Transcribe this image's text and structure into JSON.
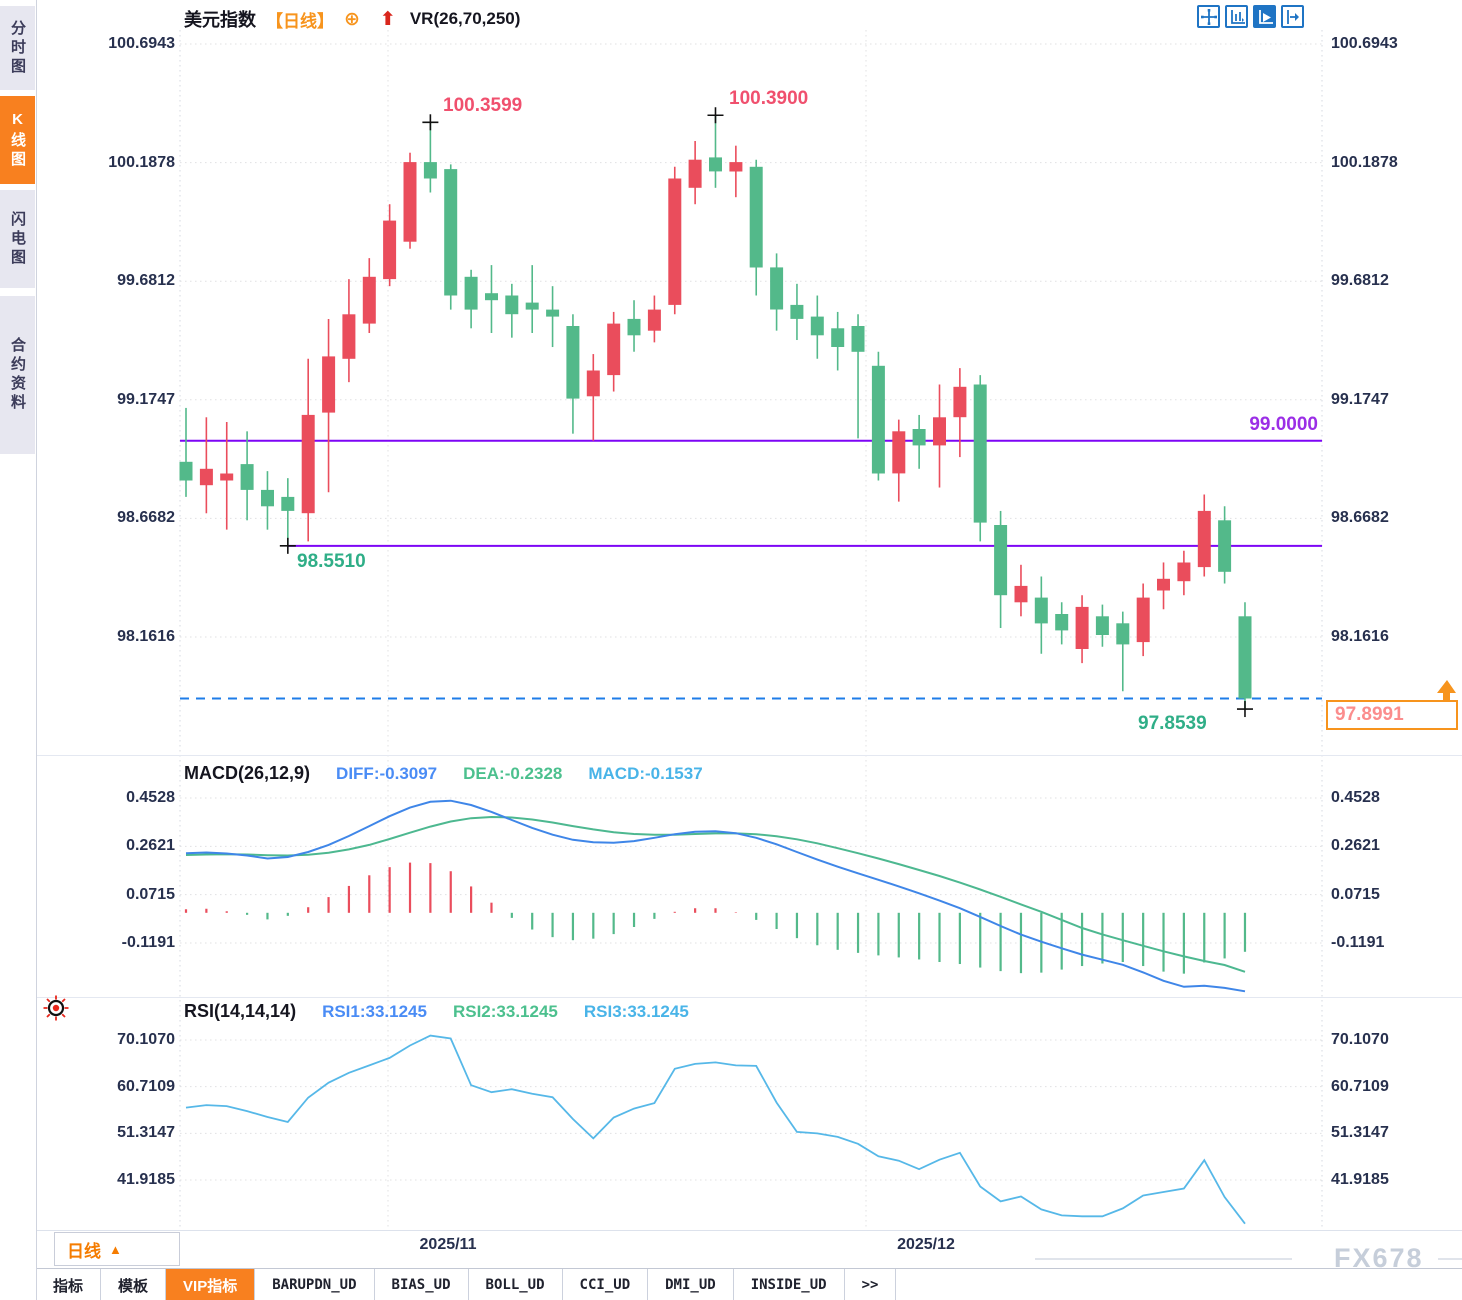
{
  "sidebar": {
    "items": [
      {
        "id": "timeshare",
        "label": "分时图",
        "active": false
      },
      {
        "id": "kline",
        "label": "K线图",
        "active": true
      },
      {
        "id": "lightning",
        "label": "闪电图",
        "active": false
      },
      {
        "id": "contract-info",
        "label": "合约资料",
        "active": false
      }
    ]
  },
  "header": {
    "symbol": "美元指数",
    "period_tag": "【日线】",
    "plus_icon": "⊕",
    "up_arrow": "⬆",
    "indicator": "VR(26,70,250)"
  },
  "toolbar_icons": [
    "crosshair-move",
    "axis-scale",
    "playback",
    "jump-to-latest"
  ],
  "price_axis": {
    "labels": [
      "100.6943",
      "100.1878",
      "99.6812",
      "99.1747",
      "98.6682",
      "98.1616"
    ]
  },
  "annotations": {
    "high1": "100.3599",
    "high2": "100.3900",
    "low1": "98.5510",
    "low2": "97.8539",
    "hline_label": "99.0000",
    "last_price": "97.8991"
  },
  "macd_panel": {
    "title": "MACD(26,12,9)",
    "diff_label": "DIFF:-0.3097",
    "dea_label": "DEA:-0.2328",
    "macd_label": "MACD:-0.1537",
    "axis_labels": [
      "0.4528",
      "0.2621",
      "0.0715",
      "-0.1191"
    ]
  },
  "rsi_panel": {
    "title": "RSI(14,14,14)",
    "rsi1_label": "RSI1:33.1245",
    "rsi2_label": "RSI2:33.1245",
    "rsi3_label": "RSI3:33.1245",
    "axis_labels": [
      "70.1070",
      "60.7109",
      "51.3147",
      "41.9185"
    ]
  },
  "xaxis": {
    "labels": [
      "2025/11",
      "2025/12"
    ]
  },
  "period_selector": {
    "label": "日线",
    "arrow": "▲"
  },
  "bottom_tabs": [
    {
      "id": "indicators",
      "label": "指标",
      "active": false,
      "mono": false
    },
    {
      "id": "templates",
      "label": "模板",
      "active": false,
      "mono": false
    },
    {
      "id": "vip-indicators",
      "label": "VIP指标",
      "active": true,
      "mono": false
    },
    {
      "id": "barupdn",
      "label": "BARUPDN_UD",
      "active": false,
      "mono": true
    },
    {
      "id": "bias",
      "label": "BIAS_UD",
      "active": false,
      "mono": true
    },
    {
      "id": "boll",
      "label": "BOLL_UD",
      "active": false,
      "mono": true
    },
    {
      "id": "cci",
      "label": "CCI_UD",
      "active": false,
      "mono": true
    },
    {
      "id": "dmi",
      "label": "DMI_UD",
      "active": false,
      "mono": true
    },
    {
      "id": "inside",
      "label": "INSIDE_UD",
      "active": false,
      "mono": true
    },
    {
      "id": "more",
      "label": ">>",
      "active": false,
      "mono": true
    }
  ],
  "watermark": "FX678",
  "colors": {
    "up": "#ea4d5c",
    "down": "#53b98a",
    "purple_line": "#7d05f5",
    "dashed_blue": "#1e7ce8",
    "accent_orange": "#f8801f",
    "grid": "#e0e0e2",
    "axis_text": "#27304e",
    "diff_line": "#3f86e8",
    "dea_line": "#4db890",
    "rsi_line": "#56b8e8"
  },
  "chart_data": {
    "type": "candlestick",
    "title": "美元指数 日线 (US Dollar Index, Daily)",
    "ylim": [
      97.75,
      100.75
    ],
    "y_ticks": [
      100.6943,
      100.1878,
      99.6812,
      99.1747,
      98.6682,
      98.1616
    ],
    "x_ticks": [
      "2025/11",
      "2025/12"
    ],
    "up_color": "#ea4d5c",
    "down_color": "#53b98a",
    "grid": true,
    "candles_ohlc": [
      [
        98.91,
        99.14,
        98.76,
        98.83
      ],
      [
        98.81,
        99.1,
        98.69,
        98.88
      ],
      [
        98.83,
        99.08,
        98.62,
        98.86
      ],
      [
        98.9,
        99.04,
        98.66,
        98.79
      ],
      [
        98.79,
        98.87,
        98.62,
        98.72
      ],
      [
        98.76,
        98.84,
        98.551,
        98.7
      ],
      [
        98.69,
        99.35,
        98.57,
        99.11
      ],
      [
        99.12,
        99.52,
        98.78,
        99.36
      ],
      [
        99.35,
        99.69,
        99.25,
        99.54
      ],
      [
        99.5,
        99.78,
        99.46,
        99.7
      ],
      [
        99.69,
        100.01,
        99.66,
        99.94
      ],
      [
        99.85,
        100.23,
        99.82,
        100.19
      ],
      [
        100.19,
        100.3599,
        100.06,
        100.12
      ],
      [
        100.16,
        100.18,
        99.56,
        99.62
      ],
      [
        99.7,
        99.73,
        99.48,
        99.56
      ],
      [
        99.63,
        99.75,
        99.46,
        99.6
      ],
      [
        99.62,
        99.67,
        99.44,
        99.54
      ],
      [
        99.59,
        99.75,
        99.46,
        99.56
      ],
      [
        99.56,
        99.66,
        99.4,
        99.53
      ],
      [
        99.49,
        99.54,
        99.03,
        99.18
      ],
      [
        99.19,
        99.37,
        99.0,
        99.3
      ],
      [
        99.28,
        99.55,
        99.21,
        99.5
      ],
      [
        99.52,
        99.6,
        99.38,
        99.45
      ],
      [
        99.47,
        99.62,
        99.42,
        99.56
      ],
      [
        99.58,
        100.17,
        99.54,
        100.12
      ],
      [
        100.08,
        100.28,
        100.01,
        100.2
      ],
      [
        100.21,
        100.39,
        100.08,
        100.15
      ],
      [
        100.15,
        100.26,
        100.04,
        100.19
      ],
      [
        100.17,
        100.2,
        99.62,
        99.74
      ],
      [
        99.74,
        99.8,
        99.47,
        99.56
      ],
      [
        99.58,
        99.67,
        99.43,
        99.52
      ],
      [
        99.53,
        99.62,
        99.35,
        99.45
      ],
      [
        99.48,
        99.55,
        99.3,
        99.4
      ],
      [
        99.49,
        99.54,
        99.01,
        99.38
      ],
      [
        99.32,
        99.38,
        98.83,
        98.86
      ],
      [
        98.86,
        99.09,
        98.74,
        99.04
      ],
      [
        99.05,
        99.11,
        98.88,
        98.98
      ],
      [
        98.98,
        99.24,
        98.8,
        99.1
      ],
      [
        99.1,
        99.31,
        98.93,
        99.23
      ],
      [
        99.24,
        99.28,
        98.57,
        98.65
      ],
      [
        98.64,
        98.7,
        98.2,
        98.34
      ],
      [
        98.31,
        98.47,
        98.25,
        98.38
      ],
      [
        98.33,
        98.42,
        98.09,
        98.22
      ],
      [
        98.26,
        98.31,
        98.13,
        98.19
      ],
      [
        98.11,
        98.34,
        98.05,
        98.29
      ],
      [
        98.25,
        98.3,
        98.12,
        98.17
      ],
      [
        98.22,
        98.27,
        97.93,
        98.13
      ],
      [
        98.14,
        98.39,
        98.08,
        98.33
      ],
      [
        98.36,
        98.48,
        98.28,
        98.41
      ],
      [
        98.4,
        98.53,
        98.34,
        98.48
      ],
      [
        98.46,
        98.77,
        98.42,
        98.7
      ],
      [
        98.66,
        98.72,
        98.39,
        98.44
      ],
      [
        98.25,
        98.31,
        97.8539,
        97.8991
      ]
    ],
    "hlines": [
      {
        "value": 99.0,
        "label": "99.0000",
        "color": "#7d05f5",
        "style": "solid",
        "from_candle": 0
      },
      {
        "value": 98.551,
        "label": "98.5510",
        "color": "#7d05f5",
        "style": "solid",
        "from_candle": 5
      },
      {
        "value": 97.8991,
        "label": "97.8991",
        "color": "#1e7ce8",
        "style": "dashed",
        "from_candle": 0
      }
    ],
    "markers": [
      {
        "candle": 12,
        "at": "high",
        "label": "100.3599"
      },
      {
        "candle": 26,
        "at": "high",
        "label": "100.3900"
      },
      {
        "candle": 5,
        "at": "low",
        "label": "98.5510"
      },
      {
        "candle": 52,
        "at": "low",
        "label": "97.8539"
      }
    ],
    "indicators": {
      "macd": {
        "params": [
          26,
          12,
          9
        ],
        "y_ticks": [
          0.4528,
          0.2621,
          0.0715,
          -0.1191
        ],
        "last": {
          "diff": -0.3097,
          "dea": -0.2328,
          "macd": -0.1537
        },
        "hist_rule": "2*(diff-dea)",
        "diff": [
          0.235,
          0.238,
          0.234,
          0.226,
          0.214,
          0.22,
          0.24,
          0.268,
          0.303,
          0.342,
          0.381,
          0.415,
          0.438,
          0.442,
          0.425,
          0.398,
          0.366,
          0.335,
          0.308,
          0.288,
          0.278,
          0.276,
          0.283,
          0.296,
          0.31,
          0.32,
          0.322,
          0.314,
          0.296,
          0.27,
          0.24,
          0.21,
          0.182,
          0.156,
          0.13,
          0.104,
          0.077,
          0.048,
          0.018,
          -0.016,
          -0.052,
          -0.086,
          -0.114,
          -0.14,
          -0.165,
          -0.185,
          -0.205,
          -0.235,
          -0.268,
          -0.292,
          -0.288,
          -0.296,
          -0.3097
        ],
        "dea": [
          0.228,
          0.23,
          0.231,
          0.23,
          0.227,
          0.226,
          0.229,
          0.237,
          0.25,
          0.268,
          0.291,
          0.316,
          0.34,
          0.36,
          0.373,
          0.378,
          0.376,
          0.368,
          0.356,
          0.342,
          0.329,
          0.318,
          0.311,
          0.308,
          0.308,
          0.311,
          0.313,
          0.313,
          0.31,
          0.302,
          0.29,
          0.274,
          0.255,
          0.235,
          0.214,
          0.192,
          0.169,
          0.145,
          0.119,
          0.092,
          0.063,
          0.033,
          0.004,
          -0.028,
          -0.06,
          -0.085,
          -0.108,
          -0.13,
          -0.152,
          -0.172,
          -0.19,
          -0.206,
          -0.2328
        ]
      },
      "rsi": {
        "params": [
          14,
          14,
          14
        ],
        "y_ticks": [
          70.107,
          60.7109,
          51.3147,
          41.9185
        ],
        "last": 33.1245,
        "values": [
          56.5,
          57.0,
          56.8,
          55.8,
          54.6,
          53.6,
          58.5,
          61.5,
          63.5,
          65.0,
          66.5,
          69.0,
          71.0,
          70.4,
          61.0,
          59.6,
          60.2,
          59.3,
          58.6,
          54.2,
          50.3,
          54.5,
          56.3,
          57.4,
          64.3,
          65.3,
          65.6,
          65.0,
          64.9,
          57.5,
          51.6,
          51.3,
          50.6,
          49.2,
          46.7,
          45.8,
          44.1,
          46.0,
          47.4,
          40.6,
          37.6,
          38.6,
          36.0,
          34.8,
          34.6,
          34.6,
          36.2,
          38.8,
          39.5,
          40.2,
          45.9,
          38.5,
          33.1245
        ]
      }
    }
  }
}
